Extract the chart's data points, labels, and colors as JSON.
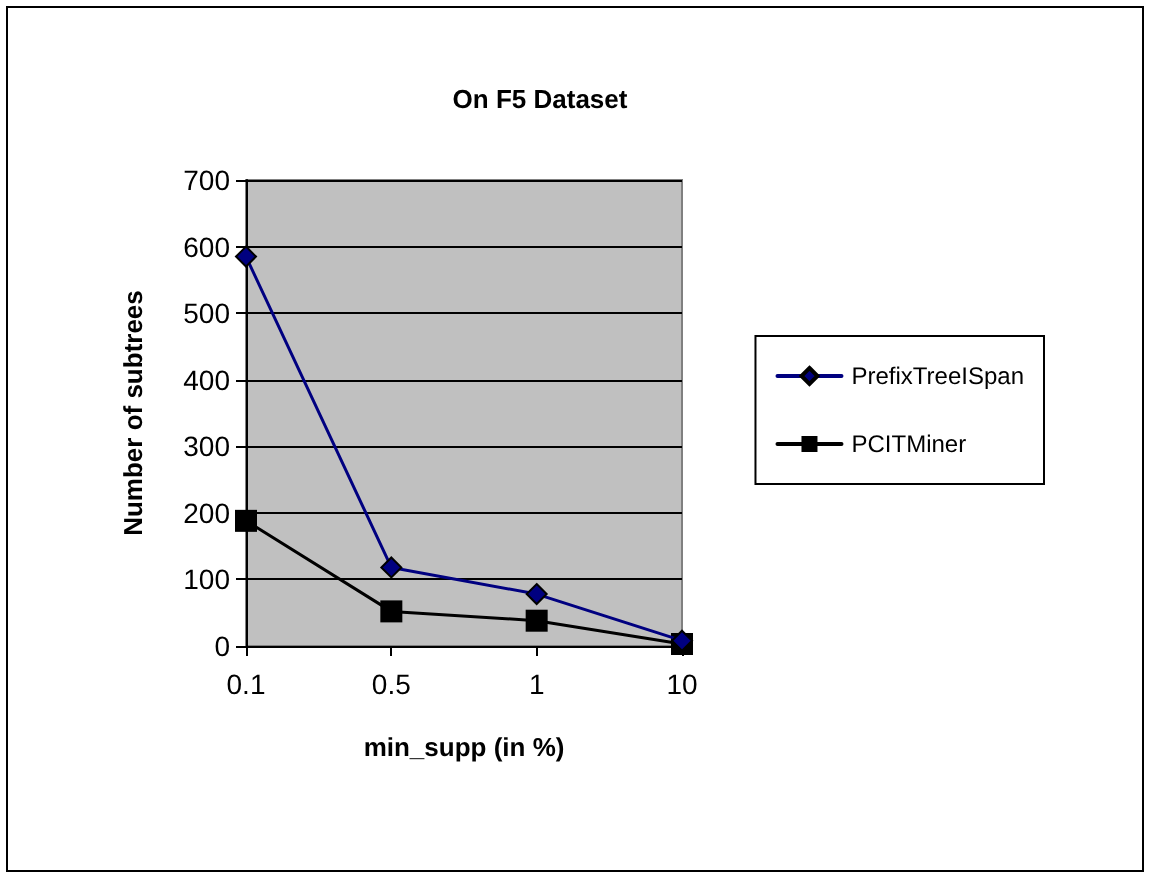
{
  "chart_data": {
    "type": "line",
    "title": "On F5 Dataset",
    "xlabel": "min_supp (in %)",
    "ylabel": "Number of subtrees",
    "categories": [
      "0.1",
      "0.5",
      "1",
      "10"
    ],
    "series": [
      {
        "name": "PrefixTreeISpan",
        "color": "#000080",
        "marker": "diamond",
        "values": [
          585,
          118,
          78,
          8
        ]
      },
      {
        "name": "PCITMiner",
        "color": "#000000",
        "marker": "square",
        "values": [
          188,
          52,
          38,
          3
        ]
      }
    ],
    "ylim": [
      0,
      700
    ],
    "yticks": [
      0,
      100,
      200,
      300,
      400,
      500,
      600,
      700
    ],
    "grid": "y",
    "legend": "right",
    "line_style": "solid"
  }
}
